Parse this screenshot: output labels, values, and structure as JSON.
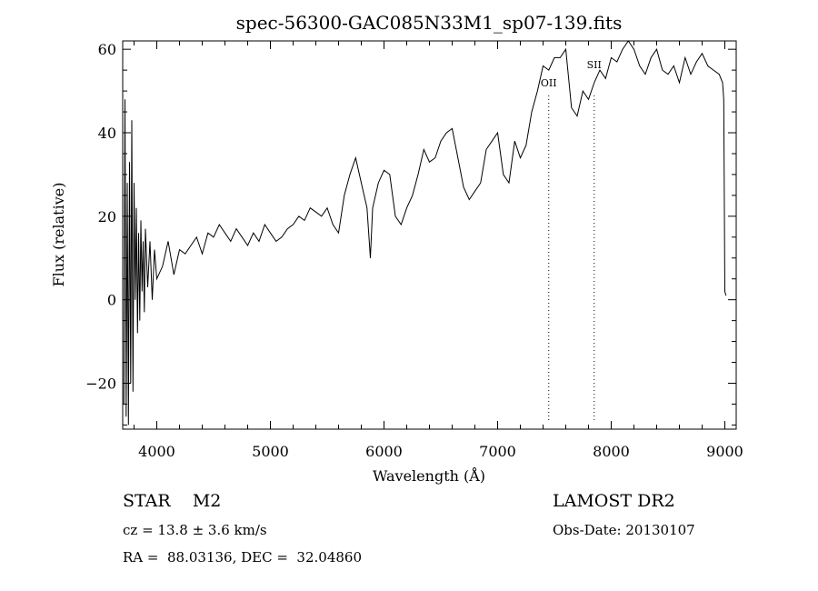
{
  "chart_data": {
    "type": "line",
    "title": "spec-56300-GAC085N33M1_sp07-139.fits",
    "xlabel": "Wavelength (Å)",
    "ylabel": "Flux (relative)",
    "xlim": [
      3700,
      9100
    ],
    "ylim": [
      -31,
      62
    ],
    "xticks": [
      4000,
      5000,
      6000,
      7000,
      8000,
      9000
    ],
    "yticks": [
      -20,
      0,
      20,
      40,
      60
    ],
    "ytick_labels": [
      "−20",
      "0",
      "20",
      "40",
      "60"
    ],
    "line_marks": [
      {
        "label": "OII",
        "x": 7450
      },
      {
        "label": "SII",
        "x": 7850
      }
    ],
    "series": [
      {
        "x": [
          3710,
          3720,
          3730,
          3740,
          3750,
          3760,
          3770,
          3780,
          3790,
          3800,
          3810,
          3820,
          3830,
          3840,
          3850,
          3860,
          3870,
          3880,
          3890,
          3900,
          3920,
          3940,
          3960,
          3980,
          4000,
          4050,
          4100,
          4150,
          4200,
          4250,
          4300,
          4350,
          4400,
          4450,
          4500,
          4550,
          4600,
          4650,
          4700,
          4750,
          4800,
          4850,
          4900,
          4950,
          5000,
          5050,
          5100,
          5150,
          5200,
          5250,
          5300,
          5350,
          5400,
          5450,
          5500,
          5550,
          5600,
          5650,
          5700,
          5750,
          5800,
          5850,
          5880,
          5900,
          5950,
          6000,
          6050,
          6100,
          6150,
          6200,
          6250,
          6300,
          6350,
          6400,
          6450,
          6500,
          6550,
          6600,
          6650,
          6700,
          6750,
          6800,
          6850,
          6900,
          6950,
          7000,
          7050,
          7100,
          7150,
          7200,
          7250,
          7300,
          7350,
          7400,
          7450,
          7500,
          7550,
          7600,
          7650,
          7700,
          7750,
          7800,
          7850,
          7900,
          7950,
          8000,
          8050,
          8100,
          8150,
          8200,
          8250,
          8300,
          8350,
          8400,
          8450,
          8500,
          8550,
          8600,
          8650,
          8700,
          8750,
          8800,
          8850,
          8900,
          8950,
          8980,
          8990,
          9000,
          9010
        ],
        "y": [
          -25,
          48,
          -28,
          28,
          -30,
          33,
          -20,
          43,
          -22,
          28,
          0,
          22,
          -8,
          16,
          -5,
          19,
          2,
          14,
          -3,
          17,
          3,
          14,
          0,
          12,
          5,
          8,
          14,
          6,
          12,
          11,
          13,
          15,
          11,
          16,
          15,
          18,
          16,
          14,
          17,
          15,
          13,
          16,
          14,
          18,
          16,
          14,
          15,
          17,
          18,
          20,
          19,
          22,
          21,
          20,
          22,
          18,
          16,
          25,
          30,
          34,
          28,
          22,
          10,
          22,
          28,
          31,
          30,
          20,
          18,
          22,
          25,
          30,
          36,
          33,
          34,
          38,
          40,
          41,
          34,
          27,
          24,
          26,
          28,
          36,
          38,
          40,
          30,
          28,
          38,
          34,
          37,
          45,
          50,
          56,
          55,
          58,
          58,
          60,
          46,
          44,
          50,
          48,
          52,
          55,
          53,
          58,
          57,
          60,
          62,
          60,
          56,
          54,
          58,
          60,
          55,
          54,
          56,
          52,
          58,
          54,
          57,
          59,
          56,
          55,
          54,
          52,
          48,
          2,
          1
        ]
      }
    ]
  },
  "info": {
    "class_label": "STAR    M2",
    "survey": "LAMOST DR2",
    "cz": "cz = 13.8 ± 3.6 km/s",
    "obs_date": "Obs-Date: 20130107",
    "radec": "RA =  88.03136, DEC =  32.04860"
  }
}
